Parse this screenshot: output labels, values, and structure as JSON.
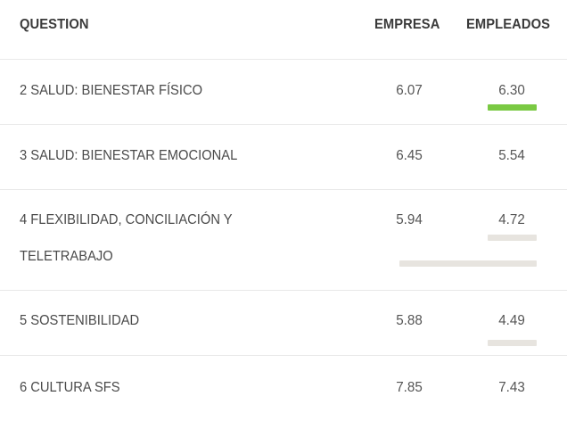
{
  "table": {
    "headers": {
      "question": "QUESTION",
      "empresa": "EMPRESA",
      "empleados": "EMPLEADOS"
    },
    "rows": [
      {
        "question": "2 SALUD: BIENESTAR FÍSICO",
        "empresa": "6.07",
        "empleados": "6.30"
      },
      {
        "question": "3 SALUD: BIENESTAR EMOCIONAL",
        "empresa": "6.45",
        "empleados": "5.54"
      },
      {
        "question_line1": "4 FLEXIBILIDAD, CONCILIACIÓN Y",
        "question_line2": "TELETRABAJO",
        "empresa": "5.94",
        "empleados": "4.72"
      },
      {
        "question": "5 SOSTENIBILIDAD",
        "empresa": "5.88",
        "empleados": "4.49"
      },
      {
        "question": "6 CULTURA SFS",
        "empresa": "7.85",
        "empleados": "7.43"
      }
    ],
    "colors": {
      "highlight_bar": "#7ac943",
      "muted_bar": "#e7e4df",
      "row_divider": "#e9e9e9"
    }
  }
}
